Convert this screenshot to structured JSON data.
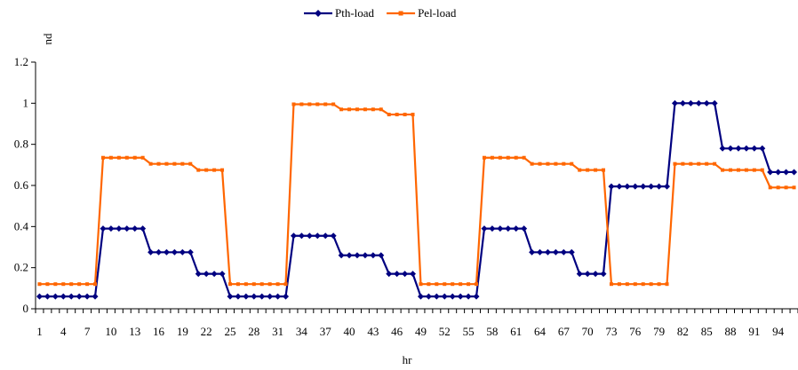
{
  "chart_data": {
    "type": "line",
    "title": "",
    "xlabel": "hr",
    "ylabel": "pu",
    "x": [
      1,
      2,
      3,
      4,
      5,
      6,
      7,
      8,
      9,
      10,
      11,
      12,
      13,
      14,
      15,
      16,
      17,
      18,
      19,
      20,
      21,
      22,
      23,
      24,
      25,
      26,
      27,
      28,
      29,
      30,
      31,
      32,
      33,
      34,
      35,
      36,
      37,
      38,
      39,
      40,
      41,
      42,
      43,
      44,
      45,
      46,
      47,
      48,
      49,
      50,
      51,
      52,
      53,
      54,
      55,
      56,
      57,
      58,
      59,
      60,
      61,
      62,
      63,
      64,
      65,
      66,
      67,
      68,
      69,
      70,
      71,
      72,
      73,
      74,
      75,
      76,
      77,
      78,
      79,
      80,
      81,
      82,
      83,
      84,
      85,
      86,
      87,
      88,
      89,
      90,
      91,
      92,
      93,
      94,
      95,
      96
    ],
    "x_tick_labels": [
      "1",
      "4",
      "7",
      "10",
      "13",
      "16",
      "19",
      "22",
      "25",
      "28",
      "31",
      "34",
      "37",
      "40",
      "43",
      "46",
      "49",
      "52",
      "55",
      "58",
      "61",
      "64",
      "67",
      "70",
      "73",
      "76",
      "79",
      "82",
      "85",
      "88",
      "91",
      "94"
    ],
    "ylim": [
      0,
      1.2
    ],
    "y_ticks": [
      0,
      0.2,
      0.4,
      0.6,
      0.8,
      1,
      1.2
    ],
    "y_tick_labels": [
      "0",
      "0.2",
      "0.4",
      "0.6",
      "0.8",
      "1",
      "1.2"
    ],
    "grid": false,
    "legend_position": "top-center",
    "series": [
      {
        "name": "Pth-load",
        "color": "#000080",
        "marker": "diamond",
        "values": [
          0.06,
          0.06,
          0.06,
          0.06,
          0.06,
          0.06,
          0.06,
          0.06,
          0.39,
          0.39,
          0.39,
          0.39,
          0.39,
          0.39,
          0.275,
          0.275,
          0.275,
          0.275,
          0.275,
          0.275,
          0.17,
          0.17,
          0.17,
          0.17,
          0.06,
          0.06,
          0.06,
          0.06,
          0.06,
          0.06,
          0.06,
          0.06,
          0.355,
          0.355,
          0.355,
          0.355,
          0.355,
          0.355,
          0.26,
          0.26,
          0.26,
          0.26,
          0.26,
          0.26,
          0.17,
          0.17,
          0.17,
          0.17,
          0.06,
          0.06,
          0.06,
          0.06,
          0.06,
          0.06,
          0.06,
          0.06,
          0.39,
          0.39,
          0.39,
          0.39,
          0.39,
          0.39,
          0.275,
          0.275,
          0.275,
          0.275,
          0.275,
          0.275,
          0.17,
          0.17,
          0.17,
          0.17,
          0.595,
          0.595,
          0.595,
          0.595,
          0.595,
          0.595,
          0.595,
          0.595,
          1.0,
          1.0,
          1.0,
          1.0,
          1.0,
          1.0,
          0.78,
          0.78,
          0.78,
          0.78,
          0.78,
          0.78,
          0.665,
          0.665,
          0.665,
          0.665
        ]
      },
      {
        "name": "Pel-load",
        "color": "#FF6600",
        "marker": "square",
        "values": [
          0.12,
          0.12,
          0.12,
          0.12,
          0.12,
          0.12,
          0.12,
          0.12,
          0.735,
          0.735,
          0.735,
          0.735,
          0.735,
          0.735,
          0.705,
          0.705,
          0.705,
          0.705,
          0.705,
          0.705,
          0.675,
          0.675,
          0.675,
          0.675,
          0.12,
          0.12,
          0.12,
          0.12,
          0.12,
          0.12,
          0.12,
          0.12,
          0.995,
          0.995,
          0.995,
          0.995,
          0.995,
          0.995,
          0.97,
          0.97,
          0.97,
          0.97,
          0.97,
          0.97,
          0.945,
          0.945,
          0.945,
          0.945,
          0.12,
          0.12,
          0.12,
          0.12,
          0.12,
          0.12,
          0.12,
          0.12,
          0.735,
          0.735,
          0.735,
          0.735,
          0.735,
          0.735,
          0.705,
          0.705,
          0.705,
          0.705,
          0.705,
          0.705,
          0.675,
          0.675,
          0.675,
          0.675,
          0.12,
          0.12,
          0.12,
          0.12,
          0.12,
          0.12,
          0.12,
          0.12,
          0.705,
          0.705,
          0.705,
          0.705,
          0.705,
          0.705,
          0.675,
          0.675,
          0.675,
          0.675,
          0.675,
          0.675,
          0.59,
          0.59,
          0.59,
          0.59
        ]
      }
    ]
  }
}
